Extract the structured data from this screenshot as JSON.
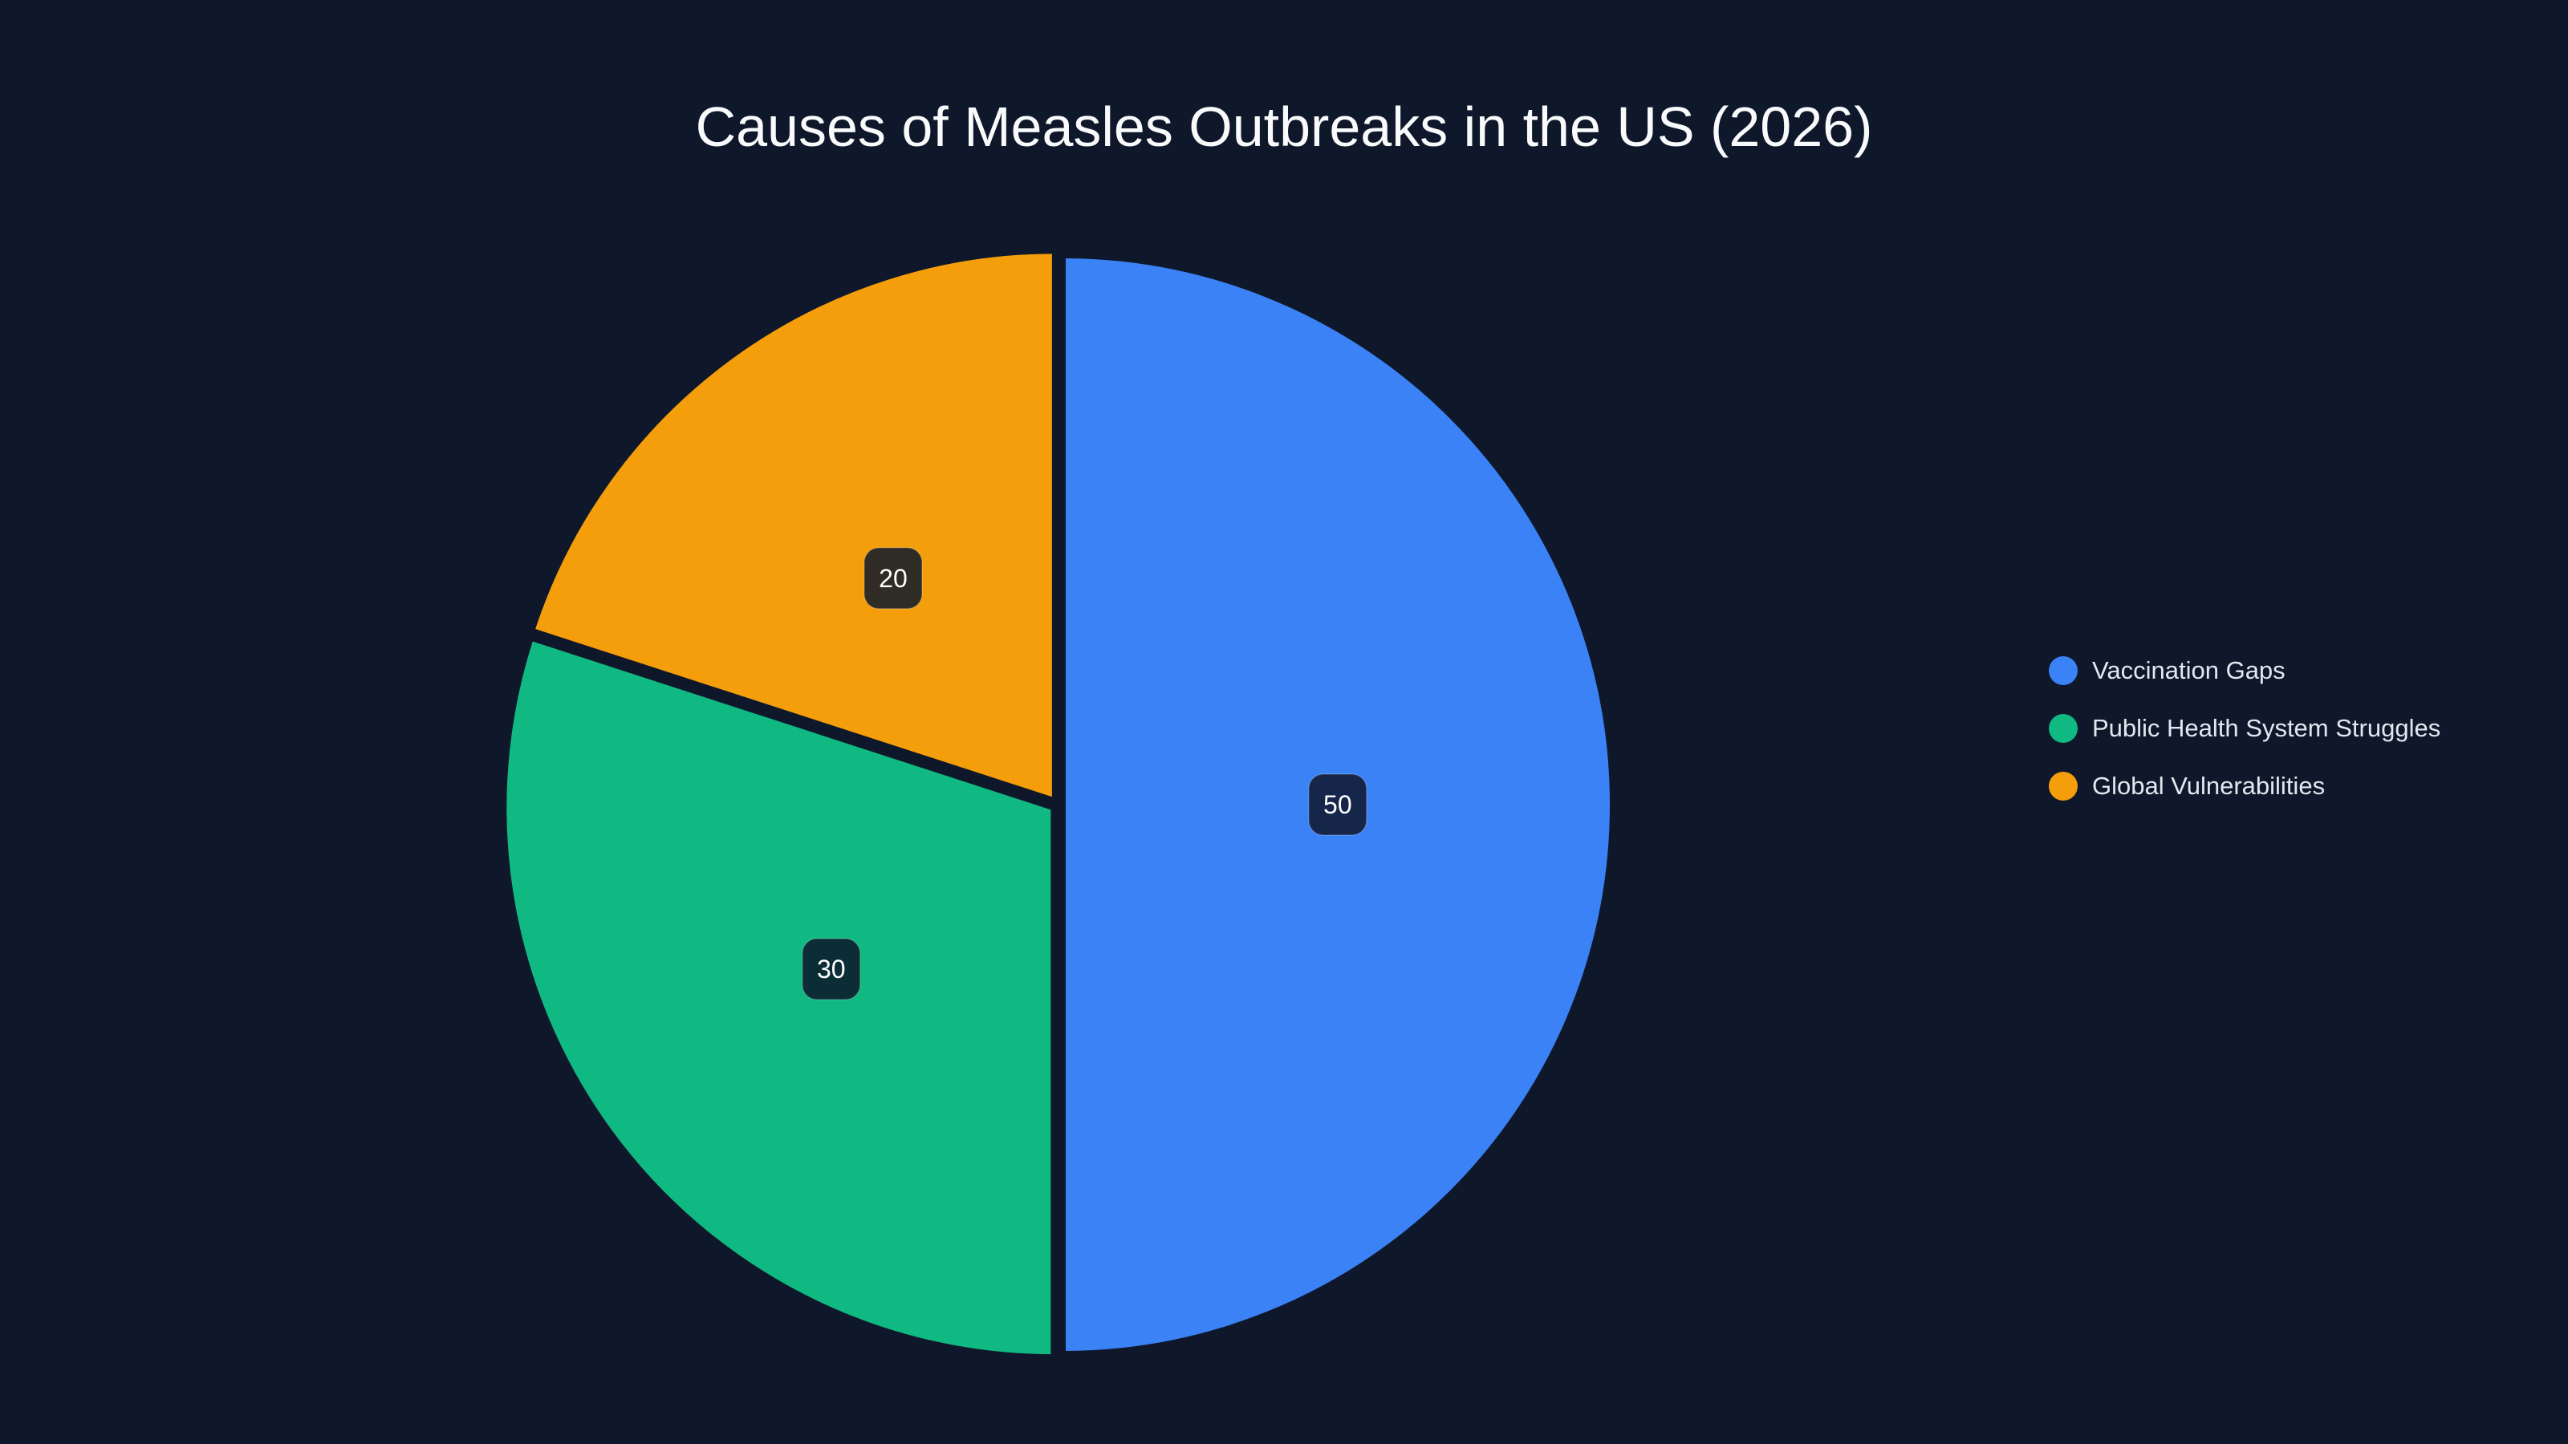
{
  "chart_data": {
    "type": "pie",
    "title": "Causes of Measles Outbreaks in the US (2026)",
    "categories": [
      "Vaccination Gaps",
      "Public Health System Struggles",
      "Global Vulnerabilities"
    ],
    "values": [
      50,
      30,
      20
    ],
    "value_labels": [
      "50",
      "30",
      "20"
    ],
    "colors": [
      "#3b82f6",
      "#10b981",
      "#f59e0b"
    ],
    "label_box_colors": [
      "#15264a",
      "#0d2d36",
      "#2f2b25"
    ],
    "legend_position": "right",
    "start_angle_deg": 0,
    "direction": "clockwise"
  }
}
